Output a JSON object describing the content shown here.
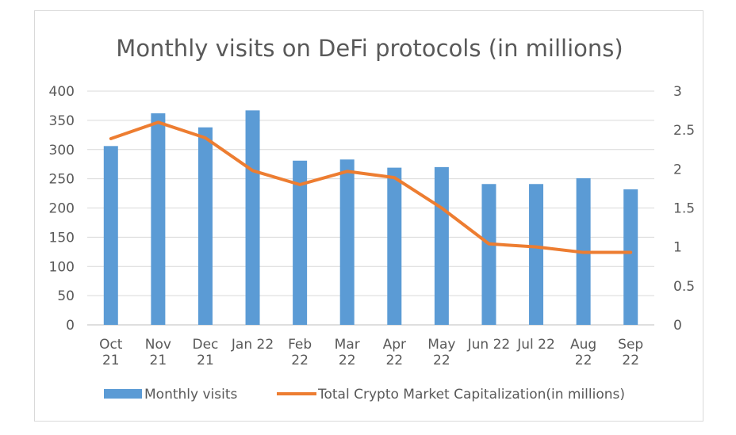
{
  "chart_data": {
    "type": "bar",
    "title": "Monthly visits on DeFi protocols (in millions)",
    "categories": [
      [
        "Oct",
        "21"
      ],
      [
        "Nov",
        "21"
      ],
      [
        "Dec",
        "21"
      ],
      [
        "Jan 22"
      ],
      [
        "Feb",
        "22"
      ],
      [
        "Mar",
        "22"
      ],
      [
        "Apr",
        "22"
      ],
      [
        "May",
        "22"
      ],
      [
        "Jun 22"
      ],
      [
        "Jul 22"
      ],
      [
        "Aug",
        "22"
      ],
      [
        "Sep",
        "22"
      ]
    ],
    "series": [
      {
        "name": "Monthly visits",
        "type": "bar",
        "axis": "left",
        "color": "#5b9bd5",
        "values": [
          306,
          362,
          338,
          367,
          281,
          283,
          269,
          270,
          241,
          241,
          251,
          232
        ]
      },
      {
        "name": "Total Crypto Market Capitalization(in millions)",
        "type": "line",
        "axis": "right",
        "color": "#ed7d31",
        "values": [
          2.39,
          2.6,
          2.4,
          1.98,
          1.8,
          1.97,
          1.89,
          1.5,
          1.04,
          1.0,
          0.93,
          0.93
        ]
      }
    ],
    "y_left": {
      "ylim": [
        0,
        400
      ],
      "ticks": [
        "0",
        "50",
        "100",
        "150",
        "200",
        "250",
        "300",
        "350",
        "400"
      ]
    },
    "y_right": {
      "ylim": [
        0,
        3
      ],
      "ticks": [
        "0",
        "0.5",
        "1",
        "1.5",
        "2",
        "2.5",
        "3"
      ]
    },
    "grid": true,
    "legend": "bottom"
  }
}
